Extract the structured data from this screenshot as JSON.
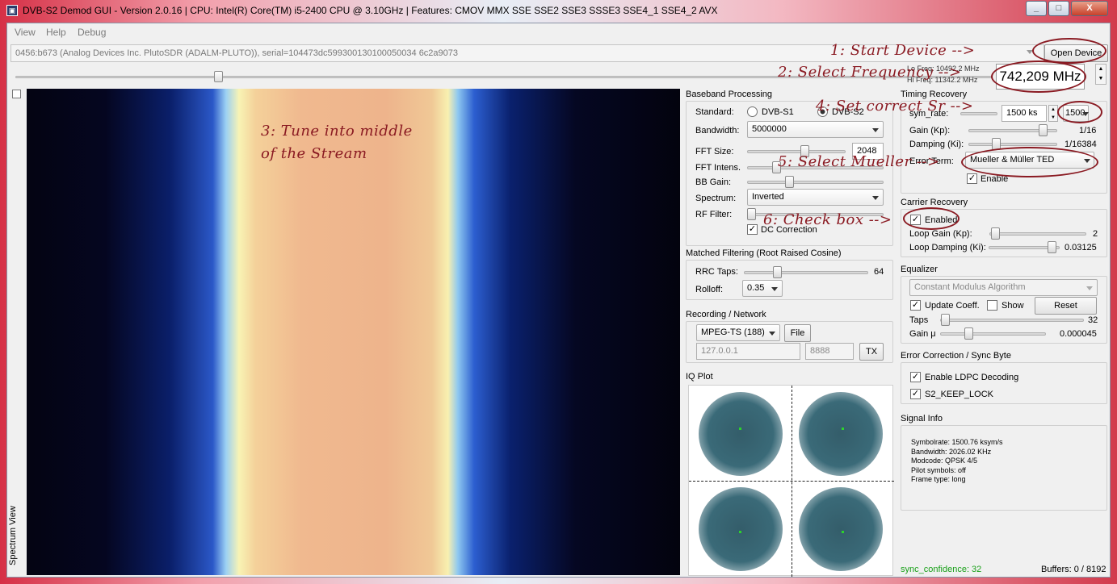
{
  "window": {
    "title": "DVB-S2 Demod GUI - Version 2.0.16 | CPU:        Intel(R) Core(TM) i5-2400 CPU @ 3.10GHz | Features: CMOV MMX SSE SSE2 SSE3 SSSE3 SSE4_1 SSE4_2 AVX",
    "minimize": "_",
    "maximize": "□",
    "close": "X"
  },
  "menu": [
    "View",
    "Help",
    "Debug"
  ],
  "device": {
    "combo_value": "0456:b673 (Analog Devices Inc. PlutoSDR (ADALM-PLUTO)), serial=104473dc599300130100050034 6c2a9073",
    "open_button": "Open Device"
  },
  "frequency": {
    "lo_label": "Lo Freq: 10492.2 MHz",
    "hi_label": "Hi Freq: 11342.2 MHz",
    "value": "742,209 MHz"
  },
  "spectrum": {
    "label": "Spectrum View"
  },
  "baseband": {
    "title": "Baseband Processing",
    "standard_label": "Standard:",
    "standard_options": [
      "DVB-S1",
      "DVB-S2"
    ],
    "standard_selected": "DVB-S2",
    "bandwidth_label": "Bandwidth:",
    "bandwidth_value": "5000000",
    "fft_size_label": "FFT Size:",
    "fft_size_value": "2048",
    "fft_intens_label": "FFT Intens.",
    "bb_gain_label": "BB Gain:",
    "spectrum_label": "Spectrum:",
    "spectrum_value": "Inverted",
    "rf_filter_label": "RF Filter:",
    "dc_correction_label": "DC Correction",
    "dc_correction_checked": true
  },
  "matched": {
    "title": "Matched Filtering (Root Raised Cosine)",
    "rrc_taps_label": "RRC Taps:",
    "rrc_taps_value": "64",
    "rolloff_label": "Rolloff:",
    "rolloff_value": "0.35"
  },
  "recording": {
    "title": "Recording / Network",
    "format_value": "MPEG-TS (188)",
    "file_button": "File",
    "ip_value": "127.0.0.1",
    "port_value": "8888",
    "tx_button": "TX"
  },
  "iq": {
    "title": "IQ Plot"
  },
  "timing": {
    "title": "Timing Recovery",
    "sym_rate_label": "sym_rate:",
    "sym_rate_value": "1500 ks",
    "sym_rate_combo": "1500",
    "gain_label": "Gain (Kp):",
    "gain_value": "1/16",
    "damping_label": "Damping (Ki):",
    "damping_value": "1/16384",
    "error_term_label": "Error Term:",
    "error_term_value": "Mueller & Müller TED",
    "enable_label": "Enable",
    "enable_checked": true
  },
  "carrier": {
    "title": "Carrier Recovery",
    "enabled_label": "Enabled",
    "enabled_checked": true,
    "loop_gain_label": "Loop Gain (Kp):",
    "loop_gain_value": "2",
    "loop_damping_label": "Loop Damping (Ki):",
    "loop_damping_value": "0.03125"
  },
  "equalizer": {
    "title": "Equalizer",
    "algorithm_value": "Constant Modulus Algorithm",
    "update_coeff_label": "Update Coeff.",
    "update_coeff_checked": true,
    "show_label": "Show",
    "show_checked": false,
    "reset_button": "Reset",
    "taps_label": "Taps",
    "taps_value": "32",
    "gain_label": "Gain μ",
    "gain_value": "0.000045"
  },
  "errcorr": {
    "title": "Error Correction / Sync Byte",
    "ldpc_label": "Enable LDPC Decoding",
    "ldpc_checked": true,
    "keep_lock_label": "S2_KEEP_LOCK",
    "keep_lock_checked": true
  },
  "signal": {
    "title": "Signal Info",
    "lines": [
      "Symbolrate: 1500.76 ksym/s",
      "Bandwidth: 2026.02 KHz",
      "Modcode: QPSK 4/5",
      "Pilot symbols: off",
      "Frame type: long"
    ]
  },
  "status": {
    "sync_confidence": "sync_confidence: 32",
    "buffers": "Buffers: 0 / 8192"
  },
  "annotations": {
    "step1": "1: Start Device -->",
    "step2": "2: Select Frequency -->",
    "step3_line1": "3: Tune into middle",
    "step3_line2": "of the Stream",
    "step4": "4: Set correct Sr -->",
    "step5": "5: Select Mueller -->",
    "step6": "6: Check box -->",
    "color": "#8a1a22"
  }
}
